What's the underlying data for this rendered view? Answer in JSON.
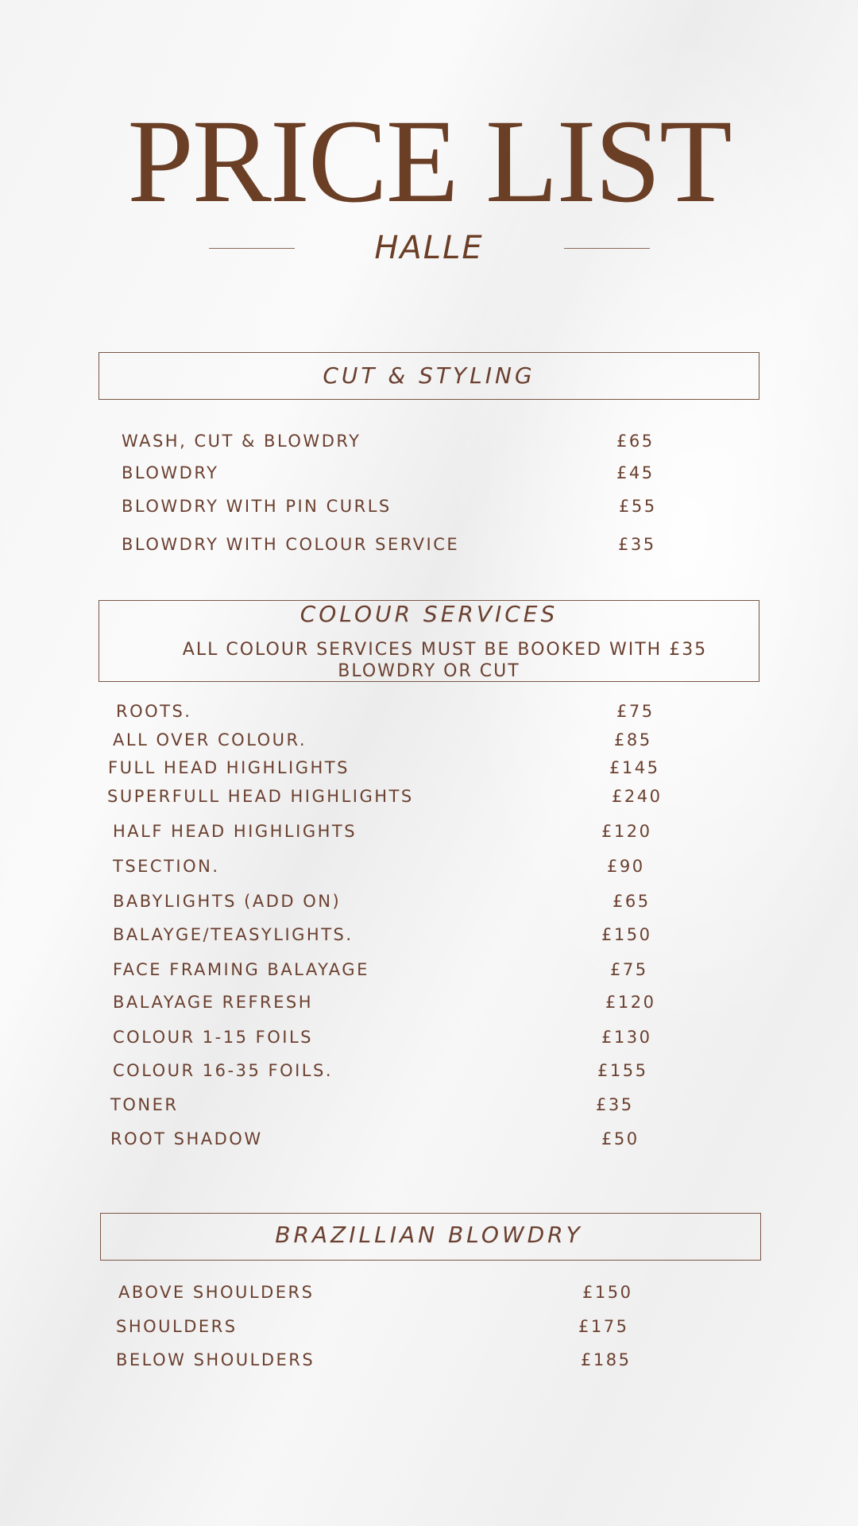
{
  "header": {
    "title": "PRICE LIST",
    "subtitle": "HALLE"
  },
  "colors": {
    "text": "#6b4030",
    "title": "#6b3e26",
    "border": "#7a5545"
  },
  "sections": [
    {
      "title": "CUT & STYLING",
      "items": [
        {
          "name": "WASH, CUT & BLOWDRY",
          "price": "£65"
        },
        {
          "name": "BLOWDRY",
          "price": "£45"
        },
        {
          "name": "BLOWDRY WITH PIN CURLS",
          "price": "£55"
        },
        {
          "name": "BLOWDRY WITH COLOUR SERVICE",
          "price": "£35"
        }
      ]
    },
    {
      "title": "COLOUR SERVICES",
      "note_line1": "ALL COLOUR SERVICES MUST BE BOOKED WITH £35",
      "note_line2": "BLOWDRY OR CUT",
      "items": [
        {
          "name": "ROOTS.",
          "price": "£75"
        },
        {
          "name": "ALL OVER COLOUR.",
          "price": "£85"
        },
        {
          "name": "FULL HEAD HIGHLIGHTS",
          "price": "£145"
        },
        {
          "name": "SUPERFULL HEAD HIGHLIGHTS",
          "price": "£240"
        },
        {
          "name": "HALF HEAD HIGHLIGHTS",
          "price": "£120"
        },
        {
          "name": "TSECTION.",
          "price": "£90"
        },
        {
          "name": "BABYLIGHTS (ADD ON)",
          "price": "£65"
        },
        {
          "name": "BALAYGE/TEASYLIGHTS.",
          "price": "£150"
        },
        {
          "name": "FACE FRAMING BALAYAGE",
          "price": "£75"
        },
        {
          "name": "BALAYAGE REFRESH",
          "price": "£120"
        },
        {
          "name": "COLOUR 1-15 FOILS",
          "price": "£130"
        },
        {
          "name": "COLOUR 16-35 FOILS.",
          "price": "£155"
        },
        {
          "name": "TONER",
          "price": "£35"
        },
        {
          "name": "ROOT SHADOW",
          "price": "£50"
        }
      ]
    },
    {
      "title": "BRAZILLIAN BLOWDRY",
      "items": [
        {
          "name": "ABOVE SHOULDERS",
          "price": "£150"
        },
        {
          "name": "SHOULDERS",
          "price": "£175"
        },
        {
          "name": "BELOW SHOULDERS",
          "price": "£185"
        }
      ]
    }
  ]
}
